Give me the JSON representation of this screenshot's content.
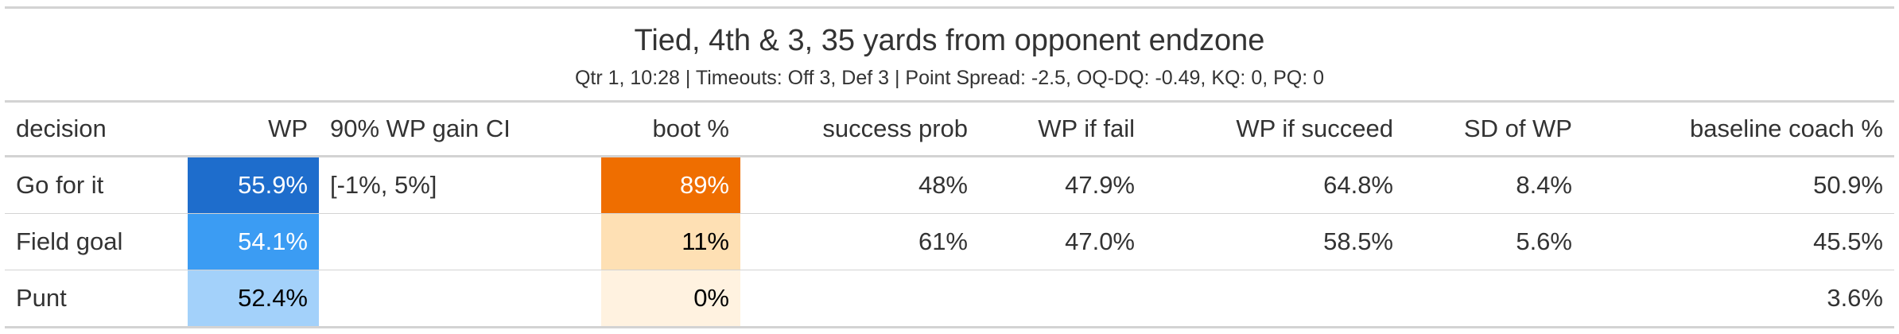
{
  "header": {
    "title": "Tied, 4th & 3, 35 yards from opponent endzone",
    "subtitle": "Qtr 1, 10:28 | Timeouts: Off 3, Def 3 | Point Spread: -2.5, OQ-DQ: -0.49, KQ: 0, PQ: 0"
  },
  "table": {
    "columns": {
      "decision": "decision",
      "wp": "WP",
      "ci": "90% WP gain CI",
      "boot": "boot %",
      "success_prob": "success prob",
      "wp_fail": "WP if fail",
      "wp_succeed": "WP if succeed",
      "sd_wp": "SD of WP",
      "baseline": "baseline coach %"
    },
    "rows": [
      {
        "decision": "Go for it",
        "wp": "55.9%",
        "ci": "[-1%, 5%]",
        "boot": "89%",
        "success_prob": "48%",
        "wp_fail": "47.9%",
        "wp_succeed": "64.8%",
        "sd_wp": "8.4%",
        "baseline": "50.9%"
      },
      {
        "decision": "Field goal",
        "wp": "54.1%",
        "ci": "",
        "boot": "11%",
        "success_prob": "61%",
        "wp_fail": "47.0%",
        "wp_succeed": "58.5%",
        "sd_wp": "5.6%",
        "baseline": "45.5%"
      },
      {
        "decision": "Punt",
        "wp": "52.4%",
        "ci": "",
        "boot": "0%",
        "success_prob": "",
        "wp_fail": "",
        "wp_succeed": "",
        "sd_wp": "",
        "baseline": "3.6%"
      }
    ]
  },
  "colors": {
    "wp_cells": [
      "#1e6dcc",
      "#3b9cf3",
      "#a3d1fa"
    ],
    "wp_text": [
      "#ffffff",
      "#ffffff",
      "#000000"
    ],
    "boot_cells": [
      "#ef6e00",
      "#fee0b4",
      "#fff2e0"
    ],
    "boot_text": [
      "#ffffff",
      "#000000",
      "#000000"
    ],
    "rule": "#d3d3d3",
    "text": "#333333"
  }
}
